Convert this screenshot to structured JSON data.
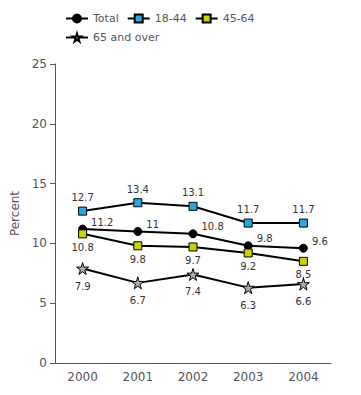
{
  "chart_data": {
    "type": "line",
    "categories": [
      "2000",
      "2001",
      "2002",
      "2003",
      "2004"
    ],
    "series": [
      {
        "name": "Total",
        "color": "#000000",
        "marker": "circle",
        "values": [
          11.2,
          11.0,
          10.8,
          9.8,
          9.6
        ]
      },
      {
        "name": "18-44",
        "color": "#29a8e0",
        "marker": "square",
        "values": [
          12.7,
          13.4,
          13.1,
          11.7,
          11.7
        ]
      },
      {
        "name": "45-64",
        "color": "#c8d400",
        "marker": "square",
        "values": [
          10.8,
          9.8,
          9.7,
          9.2,
          8.5
        ]
      },
      {
        "name": "65 and over",
        "color": "#aaaaaa",
        "marker": "star",
        "values": [
          7.9,
          6.7,
          7.4,
          6.3,
          6.6
        ]
      }
    ],
    "y_label": "Percent",
    "ylim": [
      0,
      25
    ],
    "yticks": [
      0,
      5,
      10,
      15,
      20,
      25
    ],
    "grid": false,
    "legend": "upper left",
    "data_labels": true
  }
}
